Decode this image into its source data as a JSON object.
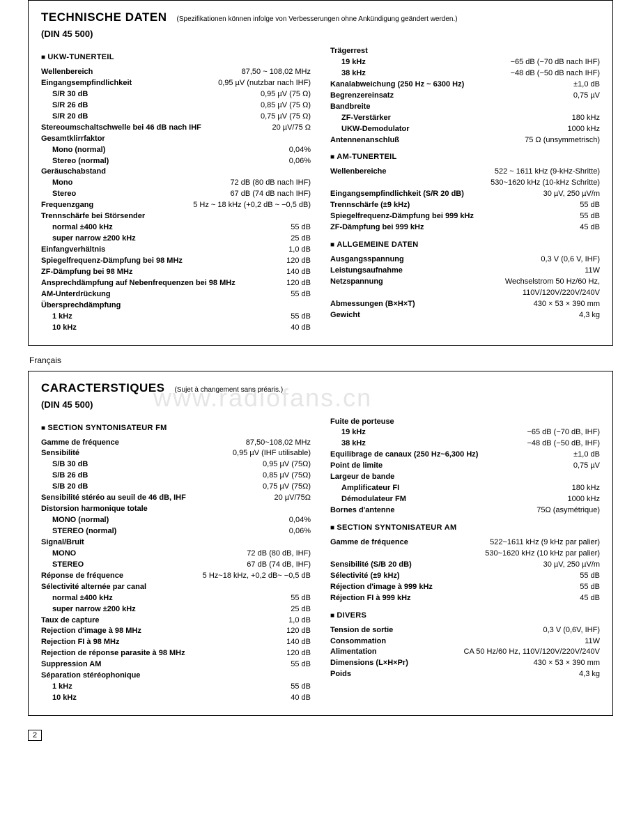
{
  "watermark": "www.radiofans.cn",
  "page_number": "2",
  "lang_label_fr": "Français",
  "de": {
    "title": "TECHNISCHE DATEN",
    "subtitle": "(Spezifikationen können infolge von Verbesserungen ohne Ankündigung geändert werden.)",
    "din": "(DIN 45 500)",
    "left": {
      "section": "UKW-TUNERTEIL",
      "rows": [
        {
          "l": "Wellenbereich",
          "v": "87,50 ~ 108,02 MHz",
          "b": true
        },
        {
          "l": "Eingangsempfindlichkeit",
          "v": "0,95 µV (nutzbar nach IHF)",
          "b": true
        },
        {
          "l": "S/R 30 dB",
          "v": "0,95 µV (75 Ω)",
          "i": 1,
          "b": true
        },
        {
          "l": "S/R 26 dB",
          "v": "0,85 µV (75 Ω)",
          "i": 1,
          "b": true
        },
        {
          "l": "S/R 20 dB",
          "v": "0,75 µV (75 Ω)",
          "i": 1,
          "b": true
        },
        {
          "l": "Stereoumschaltschwelle bei 46 dB nach IHF",
          "v": "20 µV/75 Ω",
          "b": true
        },
        {
          "l": "Gesamtklirrfaktor",
          "v": "",
          "b": true
        },
        {
          "l": "Mono (normal)",
          "v": "0,04%",
          "i": 1,
          "b": true
        },
        {
          "l": "Stereo (normal)",
          "v": "0,06%",
          "i": 1,
          "b": true
        },
        {
          "l": "Geräuschabstand",
          "v": "",
          "b": true
        },
        {
          "l": "Mono",
          "v": "72 dB (80 dB nach IHF)",
          "i": 1,
          "b": true
        },
        {
          "l": "Stereo",
          "v": "67 dB (74 dB nach IHF)",
          "i": 1,
          "b": true
        },
        {
          "l": "Frequenzgang",
          "v": "5 Hz ~ 18 kHz (+0,2 dB ~ −0,5 dB)",
          "b": true
        },
        {
          "l": "Trennschärfe bei Störsender",
          "v": "",
          "b": true
        },
        {
          "l": "normal ±400 kHz",
          "v": "55 dB",
          "i": 1,
          "b": true
        },
        {
          "l": "super narrow ±200 kHz",
          "v": "25 dB",
          "i": 1,
          "b": true
        },
        {
          "l": "Einfangverhältnis",
          "v": "1,0 dB",
          "b": true
        },
        {
          "l": "Spiegelfrequenz-Dämpfung bei 98 MHz",
          "v": "120 dB",
          "b": true
        },
        {
          "l": "ZF-Dämpfung bei 98 MHz",
          "v": "140 dB",
          "b": true
        },
        {
          "l": "Ansprechdämpfung auf Nebenfrequenzen bei 98 MHz",
          "v": "120 dB",
          "b": true
        },
        {
          "l": "AM-Unterdrückung",
          "v": "55 dB",
          "b": true
        },
        {
          "l": "Übersprechdämpfung",
          "v": "",
          "b": true
        },
        {
          "l": "1 kHz",
          "v": "55 dB",
          "i": 1,
          "b": true
        },
        {
          "l": "10 kHz",
          "v": "40 dB",
          "i": 1,
          "b": true
        }
      ]
    },
    "right": {
      "top_rows": [
        {
          "l": "Trägerrest",
          "v": "",
          "b": true
        },
        {
          "l": "19 kHz",
          "v": "−65 dB (−70 dB nach IHF)",
          "i": 1,
          "b": true
        },
        {
          "l": "38 kHz",
          "v": "−48 dB (−50 dB nach IHF)",
          "i": 1,
          "b": true
        },
        {
          "l": "Kanalabweichung (250 Hz ~ 6300 Hz)",
          "v": "±1,0 dB",
          "b": true
        },
        {
          "l": "Begrenzereinsatz",
          "v": "0,75 µV",
          "b": true
        },
        {
          "l": "Bandbreite",
          "v": "",
          "b": true
        },
        {
          "l": "ZF-Verstärker",
          "v": "180 kHz",
          "i": 1,
          "b": true
        },
        {
          "l": "UKW-Demodulator",
          "v": "1000 kHz",
          "i": 1,
          "b": true
        },
        {
          "l": "Antennenanschluß",
          "v": "75 Ω (unsymmetrisch)",
          "b": true
        }
      ],
      "am_section": "AM-TUNERTEIL",
      "am_rows": [
        {
          "l": "Wellenbereiche",
          "v": "522 ~ 1611 kHz (9-kHz-Shritte)",
          "b": true
        },
        {
          "l": "",
          "v": "530~1620 kHz (10-kHz Schritte)"
        },
        {
          "l": "Eingangsempfindlichkeit (S/R 20 dB)",
          "v": "30 µV, 250 µV/m",
          "b": true
        },
        {
          "l": "Trennschärfe (±9 kHz)",
          "v": "55 dB",
          "b": true
        },
        {
          "l": "Spiegelfrequenz-Dämpfung bei 999 kHz",
          "v": "55 dB",
          "b": true
        },
        {
          "l": "ZF-Dämpfung bei 999 kHz",
          "v": "45 dB",
          "b": true
        }
      ],
      "gen_section": "ALLGEMEINE DATEN",
      "gen_rows": [
        {
          "l": "Ausgangsspannung",
          "v": "0,3 V (0,6 V, IHF)",
          "b": true
        },
        {
          "l": "Leistungsaufnahme",
          "v": "11W",
          "b": true
        },
        {
          "l": "Netzspannung",
          "v": "Wechselstrom 50 Hz/60 Hz,",
          "b": true
        },
        {
          "l": "",
          "v": "110V/120V/220V/240V"
        },
        {
          "l": "Abmessungen (B×H×T)",
          "v": "430 × 53 × 390 mm",
          "b": true
        },
        {
          "l": "Gewicht",
          "v": "4,3 kg",
          "b": true
        }
      ]
    }
  },
  "fr": {
    "title": "CARACTERSTIQUES",
    "subtitle": "(Sujet à changement sans préaris.)",
    "din": "(DIN 45 500)",
    "left": {
      "section": "SECTION SYNTONISATEUR FM",
      "rows": [
        {
          "l": "Gamme de fréquence",
          "v": "87,50~108,02 MHz",
          "b": true
        },
        {
          "l": "Sensibilité",
          "v": "0,95 µV (IHF utilisable)",
          "b": true
        },
        {
          "l": "S/B 30 dB",
          "v": "0,95 µV (75Ω)",
          "i": 1,
          "b": true
        },
        {
          "l": "S/B 26 dB",
          "v": "0,85 µV (75Ω)",
          "i": 1,
          "b": true
        },
        {
          "l": "S/B 20 dB",
          "v": "0,75 µV (75Ω)",
          "i": 1,
          "b": true
        },
        {
          "l": "Sensibilité stéréo au seuil de 46 dB, IHF",
          "v": "20 µV/75Ω",
          "b": true
        },
        {
          "l": "Distorsion harmonique totale",
          "v": "",
          "b": true
        },
        {
          "l": "MONO (normal)",
          "v": "0,04%",
          "i": 1,
          "b": true
        },
        {
          "l": "STEREO (normal)",
          "v": "0,06%",
          "i": 1,
          "b": true
        },
        {
          "l": "Signal/Bruit",
          "v": "",
          "b": true
        },
        {
          "l": "MONO",
          "v": "72 dB (80 dB, IHF)",
          "i": 1,
          "b": true
        },
        {
          "l": "STEREO",
          "v": "67 dB (74 dB, IHF)",
          "i": 1,
          "b": true
        },
        {
          "l": "Réponse de fréquence",
          "v": "5 Hz~18 kHz, +0,2 dB~ −0,5 dB",
          "b": true
        },
        {
          "l": "Sélectivité alternée par canal",
          "v": "",
          "b": true
        },
        {
          "l": "normal ±400 kHz",
          "v": "55 dB",
          "i": 1,
          "b": true
        },
        {
          "l": "super narrow ±200 kHz",
          "v": "25 dB",
          "i": 1,
          "b": true
        },
        {
          "l": "Taux de capture",
          "v": "1,0 dB",
          "b": true
        },
        {
          "l": "Rejection d'image à 98 MHz",
          "v": "120 dB",
          "b": true
        },
        {
          "l": "Rejection FI à 98 MHz",
          "v": "140 dB",
          "b": true
        },
        {
          "l": "Rejection de réponse parasite à 98 MHz",
          "v": "120 dB",
          "b": true
        },
        {
          "l": "Suppression AM",
          "v": "55 dB",
          "b": true
        },
        {
          "l": "Séparation stéréophonique",
          "v": "",
          "b": true
        },
        {
          "l": "1 kHz",
          "v": "55 dB",
          "i": 1,
          "b": true
        },
        {
          "l": "10 kHz",
          "v": "40 dB",
          "i": 1,
          "b": true
        }
      ]
    },
    "right": {
      "top_rows": [
        {
          "l": "Fuite de porteuse",
          "v": "",
          "b": true
        },
        {
          "l": "19 kHz",
          "v": "−65 dB (−70 dB, IHF)",
          "i": 1,
          "b": true
        },
        {
          "l": "38 kHz",
          "v": "−48 dB (−50 dB, IHF)",
          "i": 1,
          "b": true
        },
        {
          "l": "Equilibrage de canaux (250 Hz~6,300 Hz)",
          "v": "±1,0 dB",
          "b": true
        },
        {
          "l": "Point de limite",
          "v": "0,75 µV",
          "b": true
        },
        {
          "l": "Largeur de bande",
          "v": "",
          "b": true
        },
        {
          "l": "Amplificateur FI",
          "v": "180 kHz",
          "i": 1,
          "b": true
        },
        {
          "l": "Démodulateur FM",
          "v": "1000 kHz",
          "i": 1,
          "b": true
        },
        {
          "l": "Bornes d'antenne",
          "v": "75Ω (asymétrique)",
          "b": true
        }
      ],
      "am_section": "SECTION SYNTONISATEUR AM",
      "am_rows": [
        {
          "l": "Gamme de fréquence",
          "v": "522~1611 kHz (9 kHz par palier)",
          "b": true
        },
        {
          "l": "",
          "v": "530~1620 kHz (10 kHz par palier)"
        },
        {
          "l": "Sensibilité (S/B 20 dB)",
          "v": "30 µV, 250 µV/m",
          "b": true
        },
        {
          "l": "Sélectivité (±9 kHz)",
          "v": "55 dB",
          "b": true
        },
        {
          "l": "Réjection d'image à 999 kHz",
          "v": "55 dB",
          "b": true
        },
        {
          "l": "Réjection FI à 999 kHz",
          "v": "45 dB",
          "b": true
        }
      ],
      "gen_section": "DIVERS",
      "gen_rows": [
        {
          "l": "Tension de sortie",
          "v": "0,3 V (0,6V, IHF)",
          "b": true
        },
        {
          "l": "Consommation",
          "v": "11W",
          "b": true
        },
        {
          "l": "Alimentation",
          "v": "CA 50 Hz/60 Hz, 110V/120V/220V/240V",
          "b": true
        },
        {
          "l": "Dimensions (L×H×Pr)",
          "v": "430 × 53 × 390 mm",
          "b": true
        },
        {
          "l": "Poids",
          "v": "4,3 kg",
          "b": true
        }
      ]
    }
  }
}
